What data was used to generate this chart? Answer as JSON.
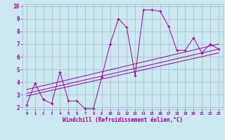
{
  "x_values": [
    0,
    1,
    2,
    3,
    4,
    5,
    6,
    7,
    8,
    9,
    10,
    11,
    12,
    13,
    14,
    15,
    16,
    17,
    18,
    19,
    20,
    21,
    22,
    23
  ],
  "main_line": [
    2.2,
    3.9,
    2.6,
    2.3,
    4.8,
    2.5,
    2.5,
    1.9,
    1.9,
    4.4,
    7.0,
    9.0,
    8.3,
    4.5,
    9.7,
    9.7,
    9.6,
    8.4,
    6.5,
    6.5,
    7.5,
    6.3,
    7.0,
    6.6
  ],
  "reg_lines": [
    [
      [
        0,
        23
      ],
      [
        2.9,
        6.3
      ]
    ],
    [
      [
        0,
        23
      ],
      [
        3.1,
        6.6
      ]
    ],
    [
      [
        0,
        23
      ],
      [
        3.4,
        7.0
      ]
    ]
  ],
  "line_color": "#990099",
  "bg_color": "#cce8f0",
  "grid_color": "#aab8cc",
  "xlabel": "Windchill (Refroidissement éolien,°C)",
  "ylim": [
    2,
    10
  ],
  "xlim": [
    -0.5,
    23.5
  ],
  "yticks": [
    2,
    3,
    4,
    5,
    6,
    7,
    8,
    9,
    10
  ],
  "xticks": [
    0,
    1,
    2,
    3,
    4,
    5,
    6,
    7,
    8,
    9,
    10,
    11,
    12,
    13,
    14,
    15,
    16,
    17,
    18,
    19,
    20,
    21,
    22,
    23
  ]
}
